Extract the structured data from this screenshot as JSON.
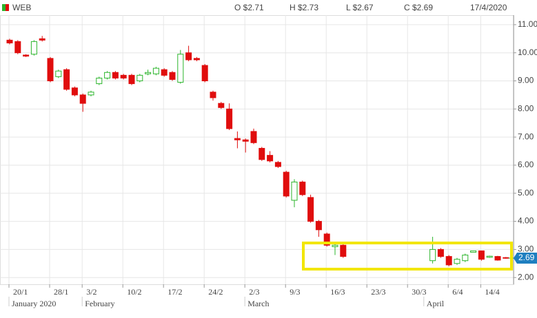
{
  "chart_data": {
    "type": "candlestick",
    "header": {
      "symbol": "WEB",
      "open": "O $2.71",
      "high": "H $2.73",
      "low": "L $2.67",
      "close": "C $2.69",
      "date": "17/4/2020"
    },
    "categories": [
      "20/1",
      null,
      null,
      null,
      null,
      "28/1",
      null,
      null,
      null,
      "3/2",
      null,
      null,
      null,
      null,
      "10/2",
      null,
      null,
      null,
      null,
      "17/2",
      null,
      null,
      null,
      null,
      "24/2",
      null,
      null,
      null,
      null,
      "2/3",
      null,
      null,
      null,
      null,
      "9/3",
      null,
      null,
      null,
      null,
      "16/3",
      null,
      null,
      null,
      null,
      "23/3",
      null,
      null,
      null,
      null,
      "30/3",
      null,
      null,
      null,
      null,
      "6/4",
      null,
      null,
      null,
      "14/4",
      null,
      null,
      null
    ],
    "month_labels": [
      "January 2020",
      null,
      null,
      null,
      null,
      null,
      null,
      null,
      null,
      "February",
      null,
      null,
      null,
      null,
      null,
      null,
      null,
      null,
      null,
      null,
      null,
      null,
      null,
      null,
      null,
      null,
      null,
      null,
      null,
      "March",
      null,
      null,
      null,
      null,
      null,
      null,
      null,
      null,
      null,
      null,
      null,
      null,
      null,
      null,
      null,
      null,
      null,
      null,
      null,
      null,
      null,
      "April",
      null,
      null,
      null,
      null,
      null,
      null,
      null,
      null,
      null,
      null
    ],
    "open": [
      10.45,
      10.4,
      9.92,
      9.95,
      10.5,
      9.8,
      9.15,
      9.4,
      8.75,
      8.5,
      8.5,
      8.9,
      9.1,
      9.3,
      9.2,
      9.2,
      9.0,
      9.25,
      9.25,
      9.4,
      9.3,
      8.95,
      10.0,
      9.8,
      9.55,
      8.6,
      8.2,
      8.0,
      6.95,
      6.9,
      7.2,
      6.6,
      6.35,
      6.1,
      5.75,
      4.75,
      5.4,
      4.85,
      4.0,
      3.55,
      3.1,
      3.15,
      null,
      null,
      null,
      null,
      null,
      null,
      null,
      null,
      null,
      null,
      2.6,
      3.0,
      2.75,
      2.5,
      2.6,
      2.9,
      2.95,
      2.72,
      2.75,
      2.71
    ],
    "high": [
      10.5,
      10.45,
      9.95,
      10.45,
      10.6,
      9.85,
      9.4,
      9.45,
      8.8,
      8.55,
      8.65,
      9.15,
      9.35,
      9.35,
      9.25,
      9.25,
      9.25,
      9.4,
      9.5,
      9.45,
      9.35,
      10.1,
      10.25,
      9.85,
      9.6,
      8.65,
      8.25,
      8.2,
      7.2,
      6.95,
      7.3,
      6.65,
      6.5,
      6.15,
      5.8,
      5.5,
      5.45,
      4.95,
      4.05,
      3.6,
      3.2,
      3.2,
      null,
      null,
      null,
      null,
      null,
      null,
      null,
      null,
      null,
      null,
      3.45,
      3.05,
      2.8,
      2.7,
      2.85,
      2.95,
      2.95,
      2.78,
      2.77,
      2.73
    ],
    "low": [
      10.3,
      9.95,
      9.85,
      9.9,
      10.4,
      8.95,
      9.1,
      8.65,
      8.45,
      7.9,
      8.45,
      8.85,
      9.05,
      9.05,
      9.05,
      8.85,
      8.95,
      9.2,
      9.2,
      9.15,
      9.0,
      8.9,
      9.7,
      9.7,
      8.95,
      8.3,
      8.0,
      7.25,
      6.6,
      6.45,
      6.75,
      6.15,
      6.1,
      5.9,
      4.85,
      4.5,
      4.9,
      3.95,
      3.45,
      3.1,
      2.8,
      2.7,
      null,
      null,
      null,
      null,
      null,
      null,
      null,
      null,
      null,
      null,
      2.5,
      2.7,
      2.4,
      2.45,
      2.55,
      2.9,
      2.6,
      2.7,
      2.6,
      2.67
    ],
    "close": [
      10.35,
      10.0,
      9.88,
      10.4,
      10.45,
      9.0,
      9.35,
      8.7,
      8.5,
      8.2,
      8.6,
      9.1,
      9.3,
      9.1,
      9.1,
      8.9,
      9.2,
      9.3,
      9.45,
      9.2,
      9.05,
      9.95,
      9.75,
      9.75,
      9.0,
      8.4,
      8.05,
      7.3,
      6.9,
      6.85,
      6.8,
      6.2,
      6.15,
      5.95,
      4.9,
      5.4,
      4.95,
      4.0,
      3.7,
      3.15,
      3.15,
      2.75,
      null,
      null,
      null,
      null,
      null,
      null,
      null,
      null,
      null,
      null,
      3.0,
      2.75,
      2.45,
      2.65,
      2.8,
      2.95,
      2.65,
      2.76,
      2.62,
      2.69
    ],
    "up_color": "#2bb52b",
    "down_color": "#e00d0d",
    "last_price": 2.69,
    "ylim": [
      1.76,
      11.34
    ],
    "yticks": [
      {
        "value": 2,
        "label": "2.00"
      },
      {
        "value": 3,
        "label": "3.00"
      },
      {
        "value": 4,
        "label": "4.00"
      },
      {
        "value": 5,
        "label": "5.00"
      },
      {
        "value": 6,
        "label": "6.00"
      },
      {
        "value": 7,
        "label": "7.00"
      },
      {
        "value": 8,
        "label": "8.00"
      },
      {
        "value": 9,
        "label": "9.00"
      },
      {
        "value": 10,
        "label": "10.00"
      },
      {
        "value": 11,
        "label": "11.00"
      }
    ],
    "grid": true
  }
}
